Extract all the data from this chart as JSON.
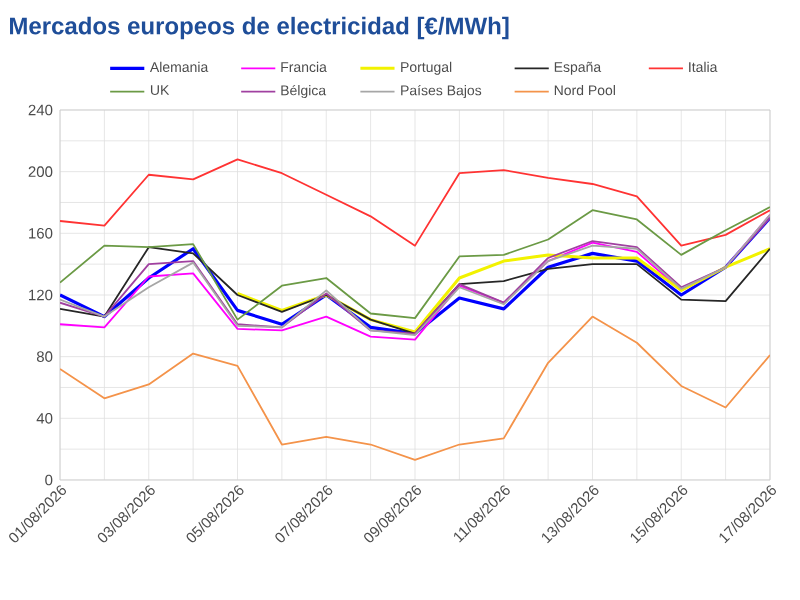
{
  "chart_data": {
    "type": "line",
    "title": "Mercados europeos de electricidad [€/MWh]",
    "x": [
      "2026-08-01",
      "2026-08-02",
      "2026-08-03",
      "2026-08-04",
      "2026-08-05",
      "2026-08-06",
      "2026-08-07",
      "2026-08-08",
      "2026-08-09",
      "2026-08-10",
      "2026-08-11",
      "2026-08-12",
      "2026-08-13",
      "2026-08-14",
      "2026-08-15",
      "2026-08-16",
      "2026-08-17"
    ],
    "series": [
      {
        "name": "Alemania",
        "color": "#0000ff",
        "values": [
          120,
          106,
          131,
          150,
          110,
          101,
          120,
          99,
          95,
          118,
          111,
          138,
          147,
          142,
          120,
          138,
          170
        ]
      },
      {
        "name": "Francia",
        "color": "#ff00ff",
        "values": [
          101,
          99,
          132,
          134,
          98,
          97,
          106,
          93,
          91,
          126,
          115,
          142,
          154,
          148,
          123,
          138,
          172
        ]
      },
      {
        "name": "Portugal",
        "color": "#f2f200",
        "values": [
          null,
          null,
          null,
          null,
          121,
          110,
          120,
          104,
          96,
          131,
          142,
          146,
          144,
          144,
          123,
          138,
          150
        ]
      },
      {
        "name": "España",
        "color": "#262626",
        "values": [
          111,
          106,
          151,
          147,
          120,
          109,
          120,
          104,
          95,
          127,
          129,
          137,
          140,
          140,
          117,
          116,
          150
        ]
      },
      {
        "name": "Italia",
        "color": "#ff3333",
        "values": [
          168,
          165,
          198,
          195,
          208,
          199,
          185,
          171,
          152,
          199,
          201,
          196,
          192,
          184,
          152,
          159,
          175
        ]
      },
      {
        "name": "UK",
        "color": "#6b9a45",
        "values": [
          128,
          152,
          151,
          153,
          104,
          126,
          131,
          108,
          105,
          145,
          146,
          156,
          175,
          169,
          146,
          162,
          177
        ]
      },
      {
        "name": "Bélgica",
        "color": "#a040a0",
        "values": [
          115,
          106,
          140,
          142,
          101,
          99,
          121,
          97,
          95,
          127,
          115,
          144,
          155,
          151,
          125,
          138,
          170
        ]
      },
      {
        "name": "Países Bajos",
        "color": "#a6a6a6",
        "values": [
          117,
          106,
          125,
          141,
          100,
          99,
          123,
          97,
          94,
          125,
          114,
          142,
          152,
          150,
          124,
          138,
          172
        ]
      },
      {
        "name": "Nord Pool",
        "color": "#f4934a",
        "values": [
          72,
          53,
          62,
          82,
          74,
          23,
          28,
          23,
          13,
          23,
          27,
          76,
          106,
          89,
          61,
          47,
          81
        ]
      }
    ],
    "xlim": [
      "2026-08-01",
      "2026-08-17"
    ],
    "xticks": [
      {
        "value": "2026-08-01",
        "label": "01/08/2026"
      },
      {
        "value": "2026-08-02",
        "label": null
      },
      {
        "value": "2026-08-03",
        "label": "03/08/2026"
      },
      {
        "value": "2026-08-04",
        "label": null
      },
      {
        "value": "2026-08-05",
        "label": "05/08/2026"
      },
      {
        "value": "2026-08-06",
        "label": null
      },
      {
        "value": "2026-08-07",
        "label": "07/08/2026"
      },
      {
        "value": "2026-08-08",
        "label": null
      },
      {
        "value": "2026-08-09",
        "label": "09/08/2026"
      },
      {
        "value": "2026-08-10",
        "label": null
      },
      {
        "value": "2026-08-11",
        "label": "11/08/2026"
      },
      {
        "value": "2026-08-12",
        "label": null
      },
      {
        "value": "2026-08-13",
        "label": "13/08/2026"
      },
      {
        "value": "2026-08-14",
        "label": null
      },
      {
        "value": "2026-08-15",
        "label": "15/08/2026"
      },
      {
        "value": "2026-08-16",
        "label": null
      },
      {
        "value": "2026-08-17",
        "label": "17/08/2026"
      }
    ],
    "ylim": [
      0,
      240
    ],
    "yticks": [
      0,
      {
        "value": 20,
        "label": null
      },
      40,
      {
        "value": 60,
        "label": null
      },
      80,
      {
        "value": 100,
        "label": null
      },
      120,
      {
        "value": 140,
        "label": null
      },
      160,
      {
        "value": 180,
        "label": null
      },
      200,
      {
        "value": 220,
        "label": null
      },
      240
    ],
    "grid": true,
    "legend": "top",
    "marker": "none",
    "line_style": "solid"
  }
}
